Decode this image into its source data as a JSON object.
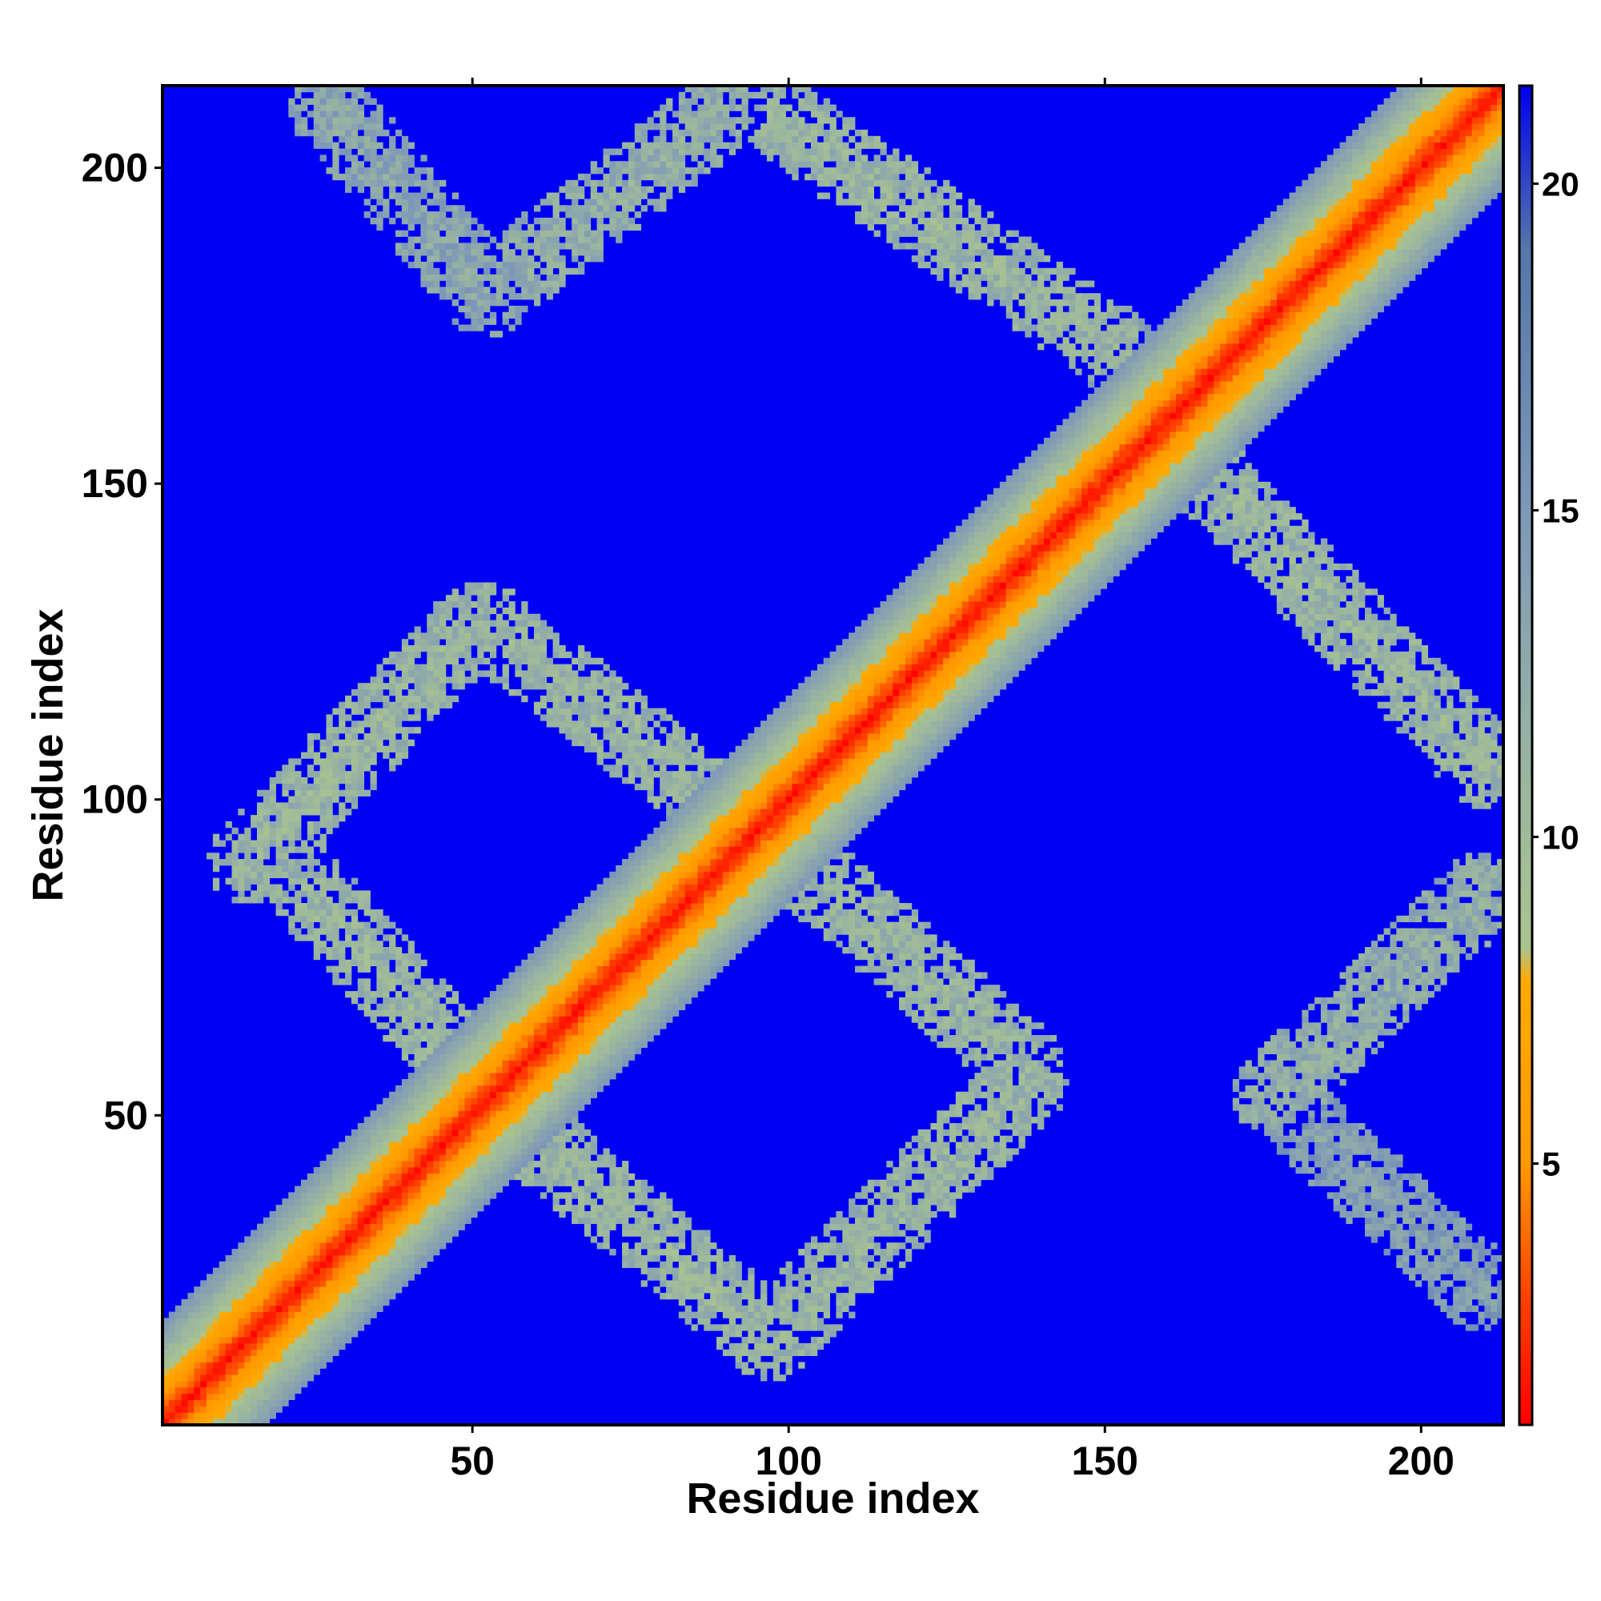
{
  "chart_data": {
    "type": "heatmap",
    "title": "",
    "xlabel": "Residue index",
    "ylabel": "Residue index",
    "xlim": [
      1,
      213
    ],
    "ylim": [
      1,
      213
    ],
    "x_ticks": [
      50,
      100,
      150,
      200
    ],
    "y_ticks": [
      50,
      100,
      150,
      200
    ],
    "x_tick_labels": [
      "50",
      "100",
      "150",
      "200"
    ],
    "y_tick_labels": [
      "50",
      "100",
      "150",
      "200"
    ],
    "n_residues": 213,
    "colorbar": {
      "range": [
        1,
        21.5
      ],
      "ticks": [
        5,
        10,
        15,
        20
      ],
      "tick_labels": [
        "5",
        "10",
        "15",
        "20"
      ],
      "colors": [
        "#ff0000",
        "#ff4400",
        "#ff9900",
        "#ffaa00",
        "#a9c48f",
        "#9ab5a0",
        "#7e98b8",
        "#5577aa",
        "#0000ee"
      ],
      "stops": [
        1,
        3,
        5,
        7.8,
        8.3,
        11,
        15,
        19,
        21.5
      ]
    },
    "background_color": "#0000f5",
    "features": [
      {
        "kind": "diagonal",
        "description": "main diagonal band",
        "from": [
          1,
          1
        ],
        "to": [
          213,
          213
        ],
        "core_value": 1.5,
        "half_width_residues": 12
      },
      {
        "kind": "band",
        "from": [
          14,
          90
        ],
        "to": [
          50,
          128
        ],
        "core_value": 11
      },
      {
        "kind": "band",
        "from": [
          20,
          90
        ],
        "to": [
          55,
          50
        ],
        "core_value": 11
      },
      {
        "kind": "band",
        "from": [
          52,
          128
        ],
        "to": [
          100,
          90
        ],
        "core_value": 11
      },
      {
        "kind": "band",
        "from": [
          55,
          50
        ],
        "to": [
          97,
          14
        ],
        "core_value": 11
      },
      {
        "kind": "band",
        "from": [
          97,
          14
        ],
        "to": [
          138,
          55
        ],
        "core_value": 11
      },
      {
        "kind": "band",
        "from": [
          95,
          96
        ],
        "to": [
          137,
          58
        ],
        "core_value": 11
      },
      {
        "kind": "band",
        "from": [
          27,
          210
        ],
        "to": [
          52,
          180
        ],
        "core_value": 13
      },
      {
        "kind": "band",
        "from": [
          52,
          180
        ],
        "to": [
          90,
          210
        ],
        "core_value": 12
      },
      {
        "kind": "band",
        "from": [
          96,
          210
        ],
        "to": [
          150,
          173
        ],
        "core_value": 11
      },
      {
        "kind": "band",
        "from": [
          150,
          173
        ],
        "to": [
          160,
          163
        ],
        "core_value": 13
      },
      {
        "kind": "band",
        "from": [
          163,
          155
        ],
        "to": [
          211,
          105
        ],
        "core_value": 11
      },
      {
        "kind": "band",
        "from": [
          177,
          53
        ],
        "to": [
          210,
          85
        ],
        "core_value": 12
      },
      {
        "kind": "band",
        "from": [
          180,
          50
        ],
        "to": [
          210,
          22
        ],
        "core_value": 14
      }
    ]
  }
}
